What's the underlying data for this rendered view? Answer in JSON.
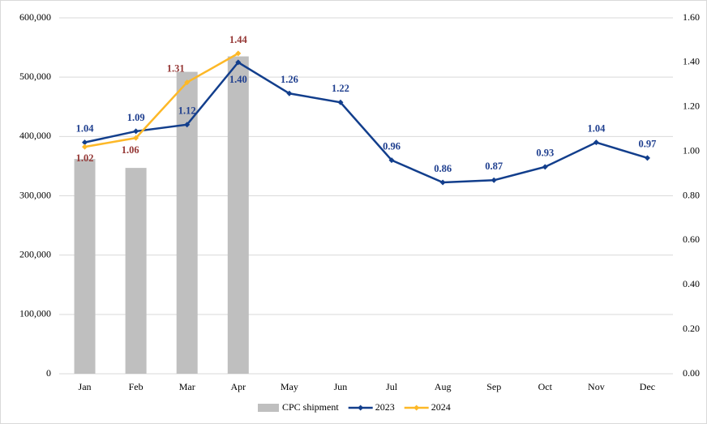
{
  "chart_data": {
    "type": "bar",
    "categories": [
      "Jan",
      "Feb",
      "Mar",
      "Apr",
      "May",
      "Jun",
      "Jul",
      "Aug",
      "Sep",
      "Oct",
      "Nov",
      "Dec"
    ],
    "series": [
      {
        "name": "CPC shipment",
        "type": "bar",
        "axis": "y",
        "color": "#bfbfbf",
        "values": [
          362000,
          347000,
          509000,
          535000,
          null,
          null,
          null,
          null,
          null,
          null,
          null,
          null
        ]
      },
      {
        "name": "2023",
        "type": "line",
        "axis": "y2",
        "color": "#123e8c",
        "label_color": "#1f3f8f",
        "values": [
          1.04,
          1.09,
          1.12,
          1.4,
          1.26,
          1.22,
          0.96,
          0.86,
          0.87,
          0.93,
          1.04,
          0.97
        ],
        "value_labels": [
          "1.04",
          "1.09",
          "1.12",
          "1.40",
          "1.26",
          "1.22",
          "0.96",
          "0.86",
          "0.87",
          "0.93",
          "1.04",
          "0.97"
        ]
      },
      {
        "name": "2024",
        "type": "line",
        "axis": "y2",
        "color": "#fdb827",
        "label_color": "#953735",
        "values": [
          1.02,
          1.06,
          1.31,
          1.44,
          null,
          null,
          null,
          null,
          null,
          null,
          null,
          null
        ],
        "value_labels": [
          "1.02",
          "1.06",
          "1.31",
          "1.44",
          null,
          null,
          null,
          null,
          null,
          null,
          null,
          null
        ]
      }
    ],
    "ylim": [
      0,
      600000
    ],
    "yticks": [
      0,
      {
        "value": 100000,
        "label": "100,000"
      },
      {
        "value": 200000,
        "label": "200,000"
      },
      {
        "value": 300000,
        "label": "300,000"
      },
      {
        "value": 400000,
        "label": "400,000"
      },
      {
        "value": 500000,
        "label": "500,000"
      },
      {
        "value": 600000,
        "label": "600,000"
      }
    ],
    "y2lim": [
      0,
      1.6
    ],
    "y2ticks": [
      {
        "value": 0,
        "label": "0.00"
      },
      {
        "value": 0.2,
        "label": "0.20"
      },
      {
        "value": 0.4,
        "label": "0.40"
      },
      {
        "value": 0.6,
        "label": "0.60"
      },
      {
        "value": 0.8,
        "label": "0.80"
      },
      {
        "value": 1.0,
        "label": "1.00"
      },
      {
        "value": 1.2,
        "label": "1.20"
      },
      {
        "value": 1.4,
        "label": "1.40"
      },
      {
        "value": 1.6,
        "label": "1.60"
      }
    ],
    "grid": true,
    "legend": "bottom"
  }
}
